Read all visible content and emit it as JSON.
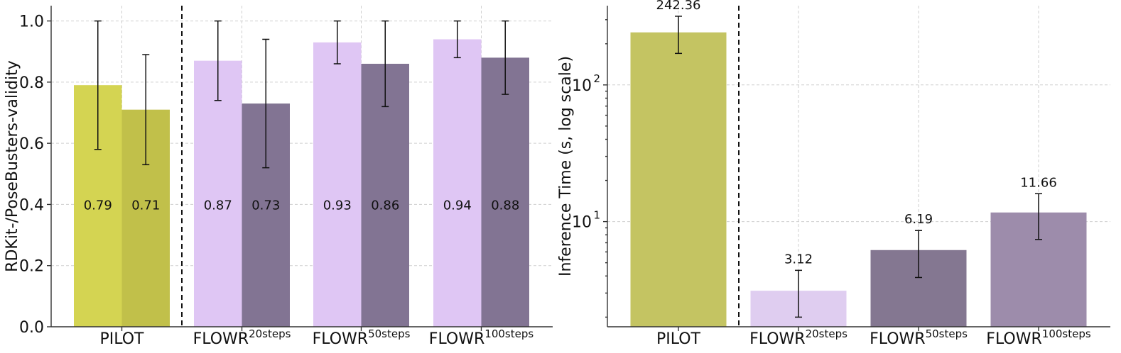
{
  "chart_data": [
    {
      "type": "bar",
      "ylabel": "RDKit-/PoseBusters-validity",
      "ylim": [
        0,
        1.05
      ],
      "yticks": [
        0.0,
        0.2,
        0.4,
        0.6,
        0.8,
        1.0
      ],
      "ytick_labels": [
        "0.0",
        "0.2",
        "0.4",
        "0.6",
        "0.8",
        "1.0"
      ],
      "grid": true,
      "categories": [
        {
          "base": "PILOT",
          "sup": ""
        },
        {
          "base": "FLOWR",
          "sup": "20steps"
        },
        {
          "base": "FLOWR",
          "sup": "50steps"
        },
        {
          "base": "FLOWR",
          "sup": "100steps"
        }
      ],
      "bars": [
        {
          "cat": 0,
          "slot": 0,
          "value": 0.79,
          "err_low": 0.58,
          "err_high": 1.0,
          "label": "0.79",
          "color": "#d4d452"
        },
        {
          "cat": 0,
          "slot": 1,
          "value": 0.71,
          "err_low": 0.53,
          "err_high": 0.89,
          "label": "0.71",
          "color": "#c1c04a"
        },
        {
          "cat": 1,
          "slot": 0,
          "value": 0.87,
          "err_low": 0.74,
          "err_high": 1.0,
          "label": "0.87",
          "color": "#dfc6f4"
        },
        {
          "cat": 1,
          "slot": 1,
          "value": 0.73,
          "err_low": 0.52,
          "err_high": 0.94,
          "label": "0.73",
          "color": "#827493"
        },
        {
          "cat": 2,
          "slot": 0,
          "value": 0.93,
          "err_low": 0.86,
          "err_high": 1.0,
          "label": "0.93",
          "color": "#dfc6f4"
        },
        {
          "cat": 2,
          "slot": 1,
          "value": 0.86,
          "err_low": 0.72,
          "err_high": 1.0,
          "label": "0.86",
          "color": "#827493"
        },
        {
          "cat": 3,
          "slot": 0,
          "value": 0.94,
          "err_low": 0.88,
          "err_high": 1.0,
          "label": "0.94",
          "color": "#dfc6f4"
        },
        {
          "cat": 3,
          "slot": 1,
          "value": 0.88,
          "err_low": 0.76,
          "err_high": 1.0,
          "label": "0.88",
          "color": "#827493"
        }
      ]
    },
    {
      "type": "bar",
      "ylabel": "Inference Time (s, log scale)",
      "yscale": "log",
      "ylim": [
        1.7,
        380
      ],
      "yticks": [
        10,
        100
      ],
      "ytick_labels": [
        {
          "base": "10",
          "exp": "1"
        },
        {
          "base": "10",
          "exp": "2"
        }
      ],
      "grid": true,
      "categories": [
        {
          "base": "PILOT",
          "sup": ""
        },
        {
          "base": "FLOWR",
          "sup": "20steps"
        },
        {
          "base": "FLOWR",
          "sup": "50steps"
        },
        {
          "base": "FLOWR",
          "sup": "100steps"
        }
      ],
      "bars": [
        {
          "cat": 0,
          "value": 242.36,
          "err_low": 170,
          "err_high": 318,
          "label": "242.36",
          "color": "#c4c462"
        },
        {
          "cat": 1,
          "value": 3.12,
          "err_low": 2.0,
          "err_high": 4.4,
          "label": "3.12",
          "color": "#dfcdf0"
        },
        {
          "cat": 2,
          "value": 6.19,
          "err_low": 3.9,
          "err_high": 8.6,
          "label": "6.19",
          "color": "#847791"
        },
        {
          "cat": 3,
          "value": 11.66,
          "err_low": 7.4,
          "err_high": 16.0,
          "label": "11.66",
          "color": "#9d8cab"
        }
      ]
    }
  ]
}
